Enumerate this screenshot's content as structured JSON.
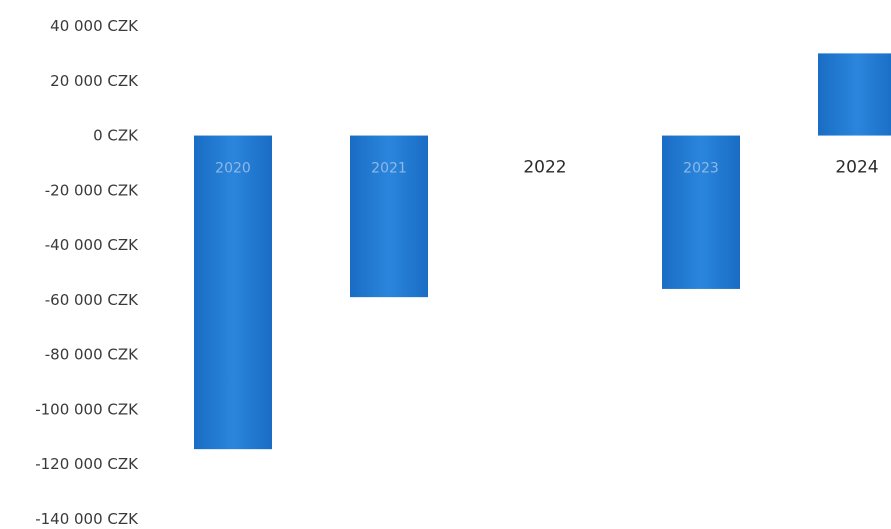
{
  "chart_data": {
    "type": "bar",
    "categories": [
      "2020",
      "2021",
      "2022",
      "2023",
      "2024"
    ],
    "values": [
      -114500,
      -59000,
      0,
      -56000,
      30000
    ],
    "ylim": [
      -140000,
      40000
    ],
    "yticks": [
      40000,
      20000,
      0,
      -20000,
      -40000,
      -60000,
      -80000,
      -100000,
      -120000,
      -140000
    ],
    "ytick_labels": [
      "40 000 CZK",
      "20 000 CZK",
      "0 CZK",
      "-20 000 CZK",
      "-40 000 CZK",
      "-60 000 CZK",
      "-80 000 CZK",
      "-100 000 CZK",
      "-120 000 CZK",
      "-140 000 CZK"
    ],
    "bar_color": "#1f77d4",
    "grid": false,
    "legend": "none",
    "title": "",
    "xlabel": "",
    "ylabel": ""
  }
}
